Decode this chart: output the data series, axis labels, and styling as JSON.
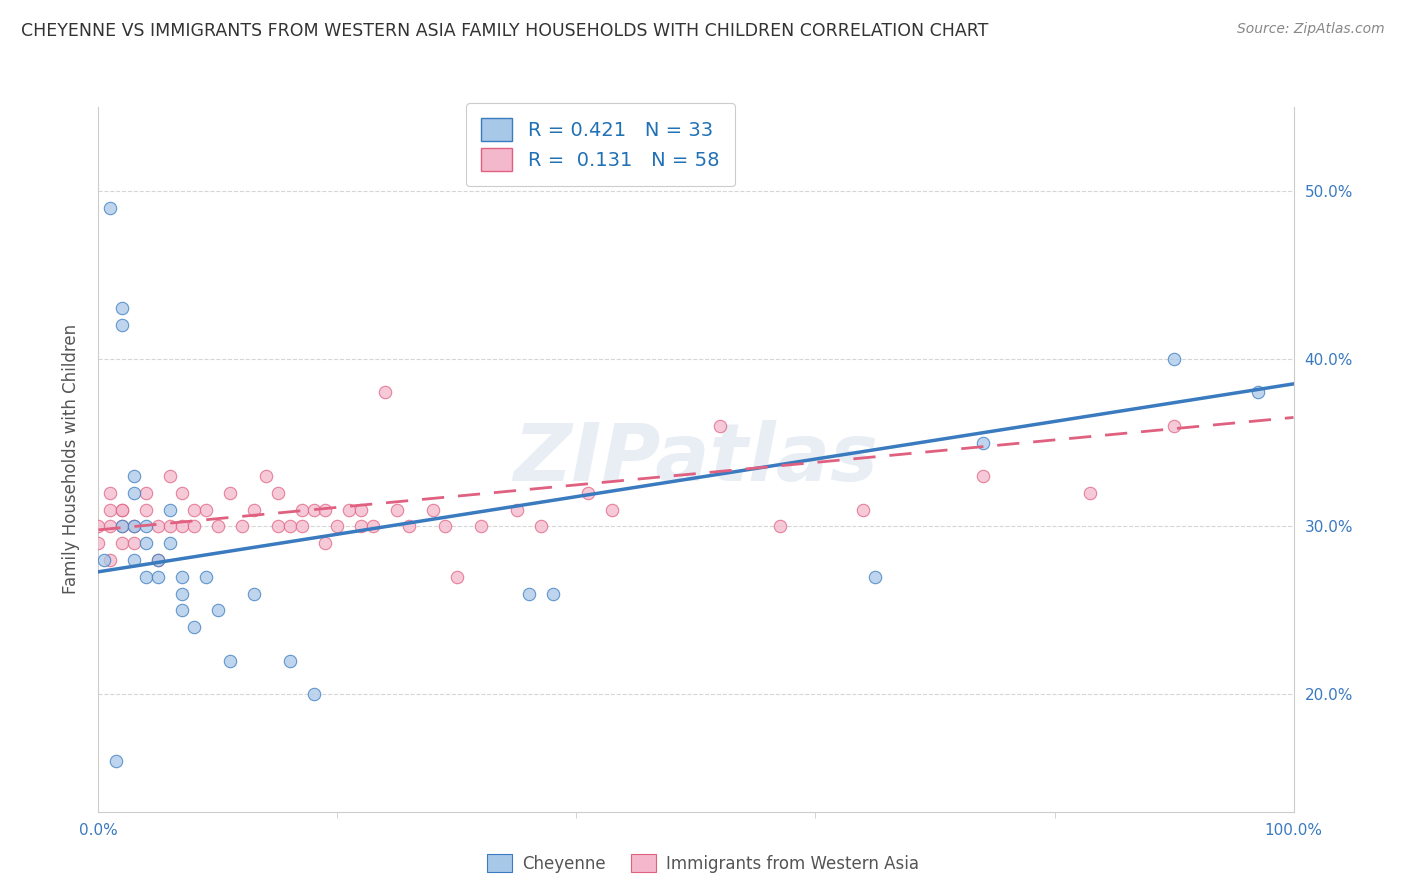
{
  "title": "CHEYENNE VS IMMIGRANTS FROM WESTERN ASIA FAMILY HOUSEHOLDS WITH CHILDREN CORRELATION CHART",
  "source": "Source: ZipAtlas.com",
  "legend_label1": "Cheyenne",
  "legend_label2": "Immigrants from Western Asia",
  "r1": 0.421,
  "n1": 33,
  "r2": 0.131,
  "n2": 58,
  "color_blue": "#a8c8e8",
  "color_blue_line": "#3a7abf",
  "color_pink": "#f4b8cc",
  "color_pink_line": "#e06080",
  "watermark": "ZIPatlas",
  "blue_scatter_x": [
    0.01,
    0.02,
    0.02,
    0.02,
    0.03,
    0.03,
    0.03,
    0.03,
    0.04,
    0.04,
    0.04,
    0.05,
    0.05,
    0.06,
    0.06,
    0.07,
    0.07,
    0.07,
    0.08,
    0.09,
    0.1,
    0.11,
    0.13,
    0.16,
    0.18,
    0.36,
    0.38,
    0.65,
    0.74,
    0.9,
    0.97,
    0.005,
    0.015
  ],
  "blue_scatter_y": [
    0.49,
    0.43,
    0.42,
    0.3,
    0.33,
    0.32,
    0.3,
    0.28,
    0.3,
    0.29,
    0.27,
    0.28,
    0.27,
    0.31,
    0.29,
    0.27,
    0.26,
    0.25,
    0.24,
    0.27,
    0.25,
    0.22,
    0.26,
    0.22,
    0.2,
    0.26,
    0.26,
    0.27,
    0.35,
    0.4,
    0.38,
    0.28,
    0.16
  ],
  "pink_scatter_x": [
    0.0,
    0.0,
    0.01,
    0.01,
    0.01,
    0.01,
    0.02,
    0.02,
    0.02,
    0.02,
    0.03,
    0.03,
    0.04,
    0.04,
    0.05,
    0.05,
    0.06,
    0.06,
    0.07,
    0.07,
    0.08,
    0.08,
    0.09,
    0.1,
    0.11,
    0.12,
    0.13,
    0.14,
    0.15,
    0.15,
    0.16,
    0.17,
    0.17,
    0.18,
    0.19,
    0.19,
    0.2,
    0.21,
    0.22,
    0.22,
    0.23,
    0.24,
    0.25,
    0.26,
    0.28,
    0.29,
    0.3,
    0.32,
    0.35,
    0.37,
    0.41,
    0.43,
    0.52,
    0.57,
    0.64,
    0.74,
    0.83,
    0.9
  ],
  "pink_scatter_y": [
    0.3,
    0.29,
    0.32,
    0.3,
    0.31,
    0.28,
    0.31,
    0.3,
    0.29,
    0.31,
    0.3,
    0.29,
    0.32,
    0.31,
    0.3,
    0.28,
    0.33,
    0.3,
    0.32,
    0.3,
    0.31,
    0.3,
    0.31,
    0.3,
    0.32,
    0.3,
    0.31,
    0.33,
    0.3,
    0.32,
    0.3,
    0.31,
    0.3,
    0.31,
    0.29,
    0.31,
    0.3,
    0.31,
    0.3,
    0.31,
    0.3,
    0.38,
    0.31,
    0.3,
    0.31,
    0.3,
    0.27,
    0.3,
    0.31,
    0.3,
    0.32,
    0.31,
    0.36,
    0.3,
    0.31,
    0.33,
    0.32,
    0.36
  ],
  "xlim": [
    0.0,
    1.0
  ],
  "ylim": [
    0.13,
    0.55
  ],
  "yticks": [
    0.2,
    0.3,
    0.4,
    0.5
  ],
  "xticks_minor": [
    0.2,
    0.4,
    0.6,
    0.8
  ],
  "blue_line_x0": 0.0,
  "blue_line_y0": 0.273,
  "blue_line_x1": 1.0,
  "blue_line_y1": 0.385,
  "pink_line_x0": 0.0,
  "pink_line_y0": 0.298,
  "pink_line_x1": 1.0,
  "pink_line_y1": 0.365
}
